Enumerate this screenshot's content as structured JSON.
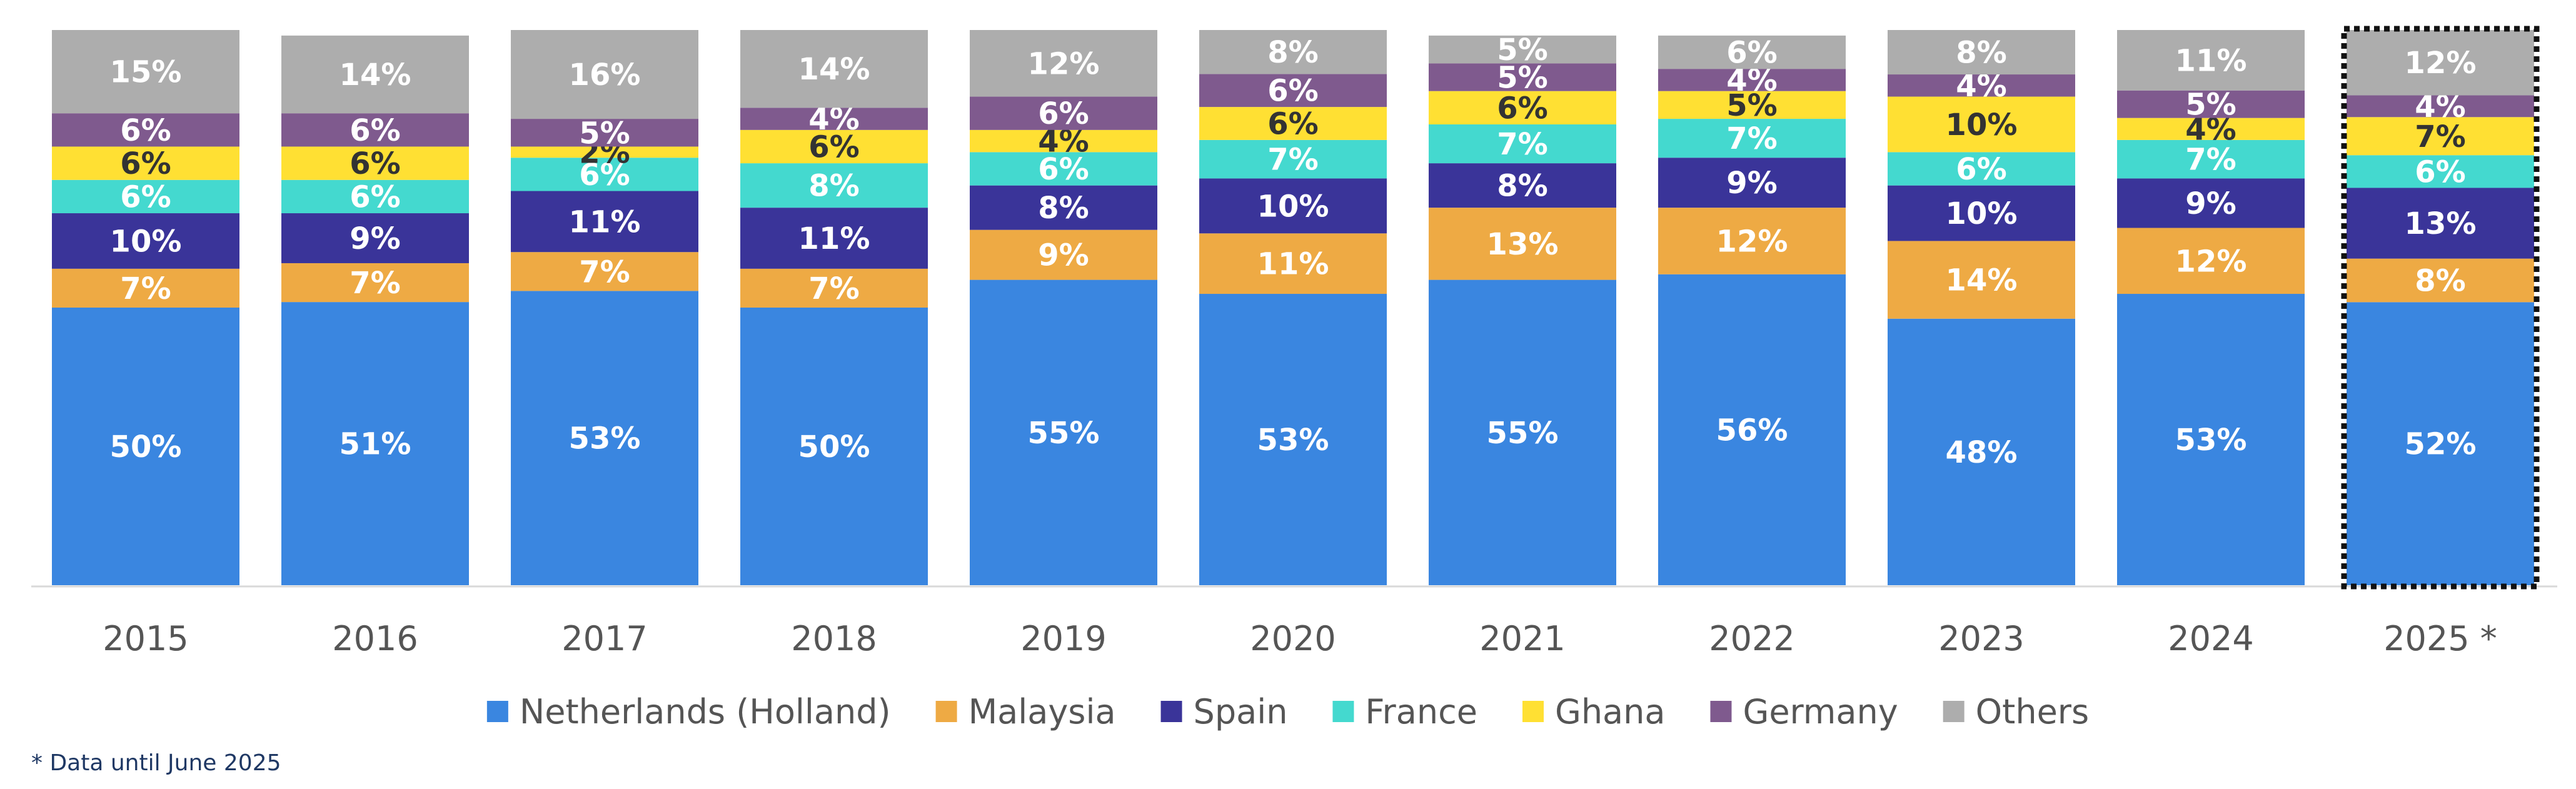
{
  "chart_data": {
    "type": "bar",
    "stacked": true,
    "percent": true,
    "categories": [
      "2015",
      "2016",
      "2017",
      "2018",
      "2019",
      "2020",
      "2021",
      "2022",
      "2023",
      "2024",
      "2025 *"
    ],
    "highlight_category": "2025 *",
    "series": [
      {
        "name": "Netherlands (Holland)",
        "color": "#3a86e0",
        "label_color": "#ffffff",
        "values": [
          50,
          51,
          53,
          50,
          55,
          53,
          55,
          56,
          48,
          53,
          52
        ]
      },
      {
        "name": "Malaysia",
        "color": "#eeaa44",
        "label_color": "#ffffff",
        "values": [
          7,
          7,
          7,
          7,
          9,
          11,
          13,
          12,
          14,
          12,
          8
        ]
      },
      {
        "name": "Spain",
        "color": "#3a3499",
        "label_color": "#ffffff",
        "values": [
          10,
          9,
          11,
          11,
          8,
          10,
          8,
          9,
          10,
          9,
          13
        ]
      },
      {
        "name": "France",
        "color": "#44d9cf",
        "label_color": "#ffffff",
        "values": [
          6,
          6,
          6,
          8,
          6,
          7,
          7,
          7,
          6,
          7,
          6
        ]
      },
      {
        "name": "Ghana",
        "color": "#ffe033",
        "label_color": "#333333",
        "values": [
          6,
          6,
          2,
          6,
          4,
          6,
          6,
          5,
          10,
          4,
          7
        ]
      },
      {
        "name": "Germany",
        "color": "#7f5a8e",
        "label_color": "#ffffff",
        "values": [
          6,
          6,
          5,
          4,
          6,
          6,
          5,
          4,
          4,
          5,
          4
        ]
      },
      {
        "name": "Others",
        "color": "#adadad",
        "label_color": "#ffffff",
        "values": [
          15,
          14,
          16,
          14,
          12,
          8,
          5,
          6,
          8,
          11,
          12
        ]
      }
    ],
    "value_suffix": "%",
    "ylim": [
      0,
      100
    ],
    "grid": false,
    "legend_position": "bottom",
    "footnote": "* Data until June 2025"
  }
}
